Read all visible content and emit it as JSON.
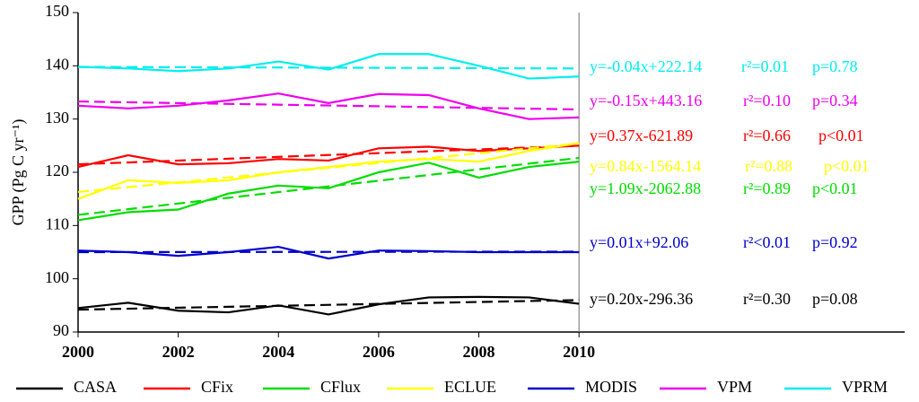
{
  "chart_data": {
    "type": "line",
    "y_label": "GPP (Pg C yr⁻¹)",
    "x": [
      2000,
      2001,
      2002,
      2003,
      2004,
      2005,
      2006,
      2007,
      2008,
      2009,
      2010
    ],
    "xlim": [
      2000,
      2016.5
    ],
    "xticks": [
      2000,
      2002,
      2004,
      2006,
      2008,
      2010
    ],
    "ylim": [
      90,
      150
    ],
    "yticks": [
      90,
      100,
      110,
      120,
      130,
      140,
      150
    ],
    "series": [
      {
        "name": "CASA",
        "color": "#000000",
        "values": [
          94.5,
          95.5,
          94,
          93.7,
          95,
          93.3,
          95.2,
          96.5,
          96.6,
          96.5,
          95.3
        ],
        "trend": {
          "x": [
            2000,
            2010
          ],
          "values": [
            94.2,
            96
          ]
        },
        "equation": "y=0.20x-296.36",
        "r2": "r²=0.30",
        "p": "p=0.08"
      },
      {
        "name": "CFix",
        "color": "#ff0000",
        "values": [
          121,
          123.2,
          121.5,
          121.7,
          122.5,
          122.2,
          124.5,
          124.8,
          124,
          124.5,
          125
        ],
        "trend": {
          "x": [
            2000,
            2010
          ],
          "values": [
            121.5,
            125
          ]
        },
        "equation": "y=0.37x-621.89",
        "r2": "r²=0.66",
        "p": "p<0.01"
      },
      {
        "name": "CFlux",
        "color": "#00dd00",
        "values": [
          111,
          112.5,
          113,
          116,
          117.5,
          117,
          120,
          121.8,
          119,
          121,
          122
        ],
        "trend": {
          "x": [
            2000,
            2010
          ],
          "values": [
            112,
            122.7
          ]
        },
        "equation": "y=1.09x-2062.88",
        "r2": "r²=0.89",
        "p": "p<0.01"
      },
      {
        "name": "ECLUE",
        "color": "#ffff00",
        "values": [
          115,
          118.5,
          118,
          118.5,
          120,
          121,
          122,
          122.5,
          122,
          124,
          125.5
        ],
        "trend": {
          "x": [
            2000,
            2010
          ],
          "values": [
            116.3,
            125.4
          ]
        },
        "equation": "y=0.84x-1564.14",
        "r2": "r²=0.88",
        "p": "p<0.01"
      },
      {
        "name": "MODIS",
        "color": "#0000cc",
        "values": [
          105.3,
          105,
          104.3,
          105,
          106,
          103.8,
          105.3,
          105.2,
          105,
          105,
          105
        ],
        "trend": {
          "x": [
            2000,
            2010
          ],
          "values": [
            105,
            105.1
          ]
        },
        "equation": "y=0.01x+92.06",
        "r2": "r²<0.01",
        "p": "p=0.92"
      },
      {
        "name": "VPM",
        "color": "#ee00ee",
        "values": [
          132.5,
          132,
          132.5,
          133.5,
          134.8,
          133,
          134.7,
          134.5,
          132,
          130,
          130.3
        ],
        "trend": {
          "x": [
            2000,
            2010
          ],
          "values": [
            133.3,
            131.8
          ]
        },
        "equation": "y=-0.15x+443.16",
        "r2": "r²=0.10",
        "p": "p=0.34"
      },
      {
        "name": "VPRM",
        "color": "#00eeee",
        "values": [
          139.8,
          139.5,
          139,
          139.5,
          140.8,
          139.3,
          142.2,
          142.2,
          140,
          137.6,
          138
        ],
        "trend": {
          "x": [
            2000,
            2010
          ],
          "values": [
            139.8,
            139.5
          ]
        },
        "equation": "y=-0.04x+222.14",
        "r2": "r²=0.01",
        "p": "p=0.78"
      }
    ]
  }
}
